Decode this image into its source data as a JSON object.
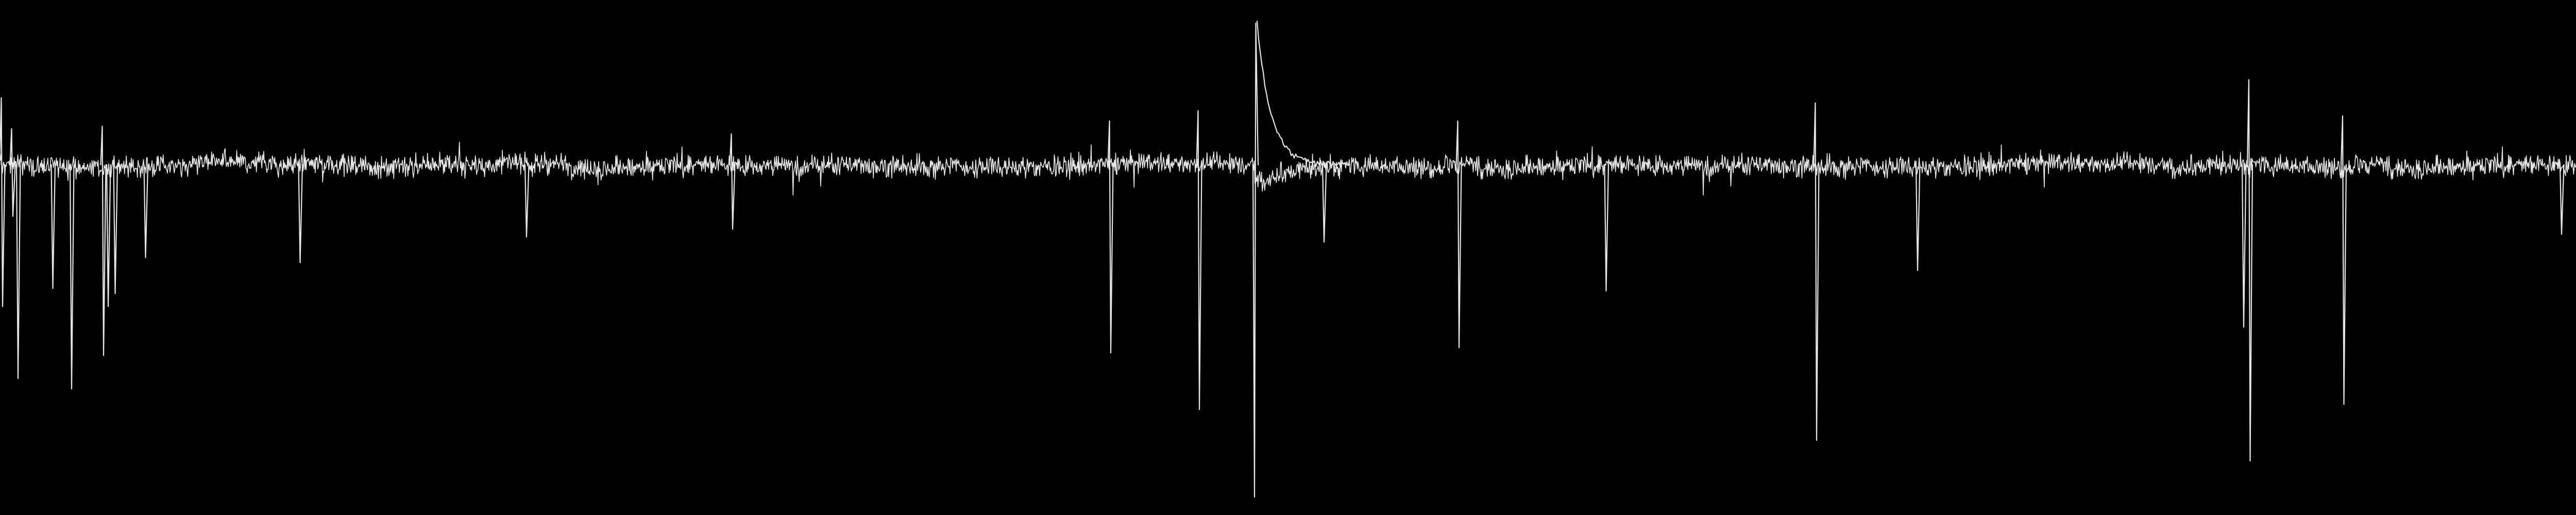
{
  "chart_data": {
    "type": "line",
    "title": "",
    "xlabel": "",
    "ylabel": "",
    "grid": false,
    "legend": "none",
    "xlim": [
      0,
      1000
    ],
    "ylim": [
      -1,
      1
    ],
    "colors": {
      "background": "#000000",
      "trace": "#e6e6e6"
    },
    "baseline": 0.0,
    "noise_amplitude": 0.06,
    "events": [
      {
        "x": 0.5,
        "y": [
          0.26,
          -0.55
        ]
      },
      {
        "x": 4.5,
        "y": [
          0.14,
          -0.2
        ]
      },
      {
        "x": 7.0,
        "y": [
          -0.83
        ]
      },
      {
        "x": 20.5,
        "y": [
          -0.48
        ]
      },
      {
        "x": 27.8,
        "y": [
          -0.87
        ]
      },
      {
        "x": 39.7,
        "y": [
          0.15,
          -0.74
        ]
      },
      {
        "x": 42.0,
        "y": [
          -0.55
        ]
      },
      {
        "x": 44.7,
        "y": [
          -0.5
        ]
      },
      {
        "x": 56.5,
        "y": [
          -0.36
        ]
      },
      {
        "x": 116.5,
        "y": [
          -0.38
        ]
      },
      {
        "x": 204.4,
        "y": [
          -0.28
        ]
      },
      {
        "x": 283.9,
        "y": [
          0.12,
          -0.25
        ]
      },
      {
        "x": 430.7,
        "y": [
          0.17,
          -0.73
        ]
      },
      {
        "x": 465.1,
        "y": [
          0.21,
          -0.95
        ]
      },
      {
        "x": 487.0,
        "y": [
          -1.29,
          0.55
        ]
      },
      {
        "x": 514.0,
        "y": [
          -0.3
        ]
      },
      {
        "x": 565.9,
        "y": [
          0.17,
          -0.71
        ]
      },
      {
        "x": 623.5,
        "y": [
          -0.49
        ]
      },
      {
        "x": 704.7,
        "y": [
          0.24,
          -1.07
        ]
      },
      {
        "x": 744.4,
        "y": [
          -0.41
        ]
      },
      {
        "x": 871.0,
        "y": [
          -0.63
        ]
      },
      {
        "x": 873.0,
        "y": [
          0.33,
          -1.15
        ]
      },
      {
        "x": 909.4,
        "y": [
          0.19,
          -0.93
        ]
      },
      {
        "x": 994.4,
        "y": [
          -0.27
        ]
      }
    ]
  }
}
